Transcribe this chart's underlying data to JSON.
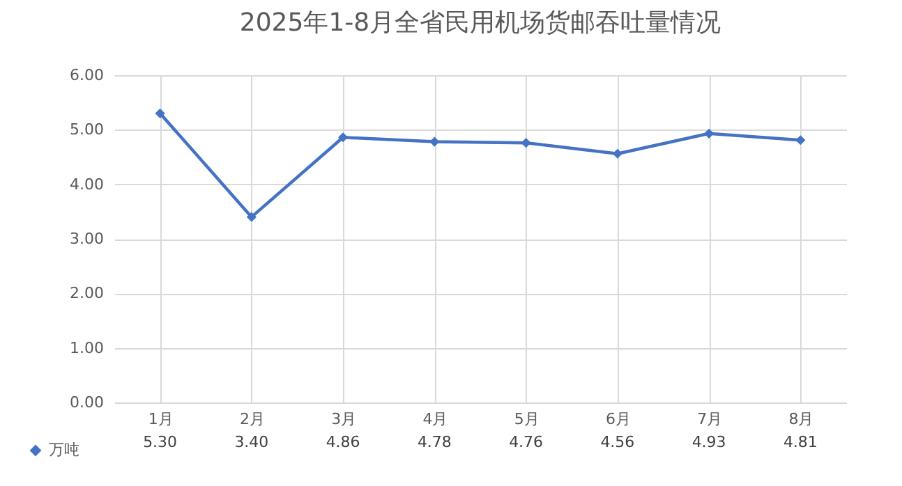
{
  "chart_data": {
    "type": "line",
    "title": "2025年1-8月全省民用机场货邮吞吐量情况",
    "categories": [
      "1月",
      "2月",
      "3月",
      "4月",
      "5月",
      "6月",
      "7月",
      "8月"
    ],
    "series": [
      {
        "name": "万吨",
        "color": "#4472c4",
        "values": [
          5.3,
          3.4,
          4.86,
          4.78,
          4.76,
          4.56,
          4.93,
          4.81
        ],
        "value_labels": [
          "5.30",
          "3.40",
          "4.86",
          "4.78",
          "4.76",
          "4.56",
          "4.93",
          "4.81"
        ]
      }
    ],
    "ylim": [
      0,
      6
    ],
    "yticks": [
      {
        "value": 0,
        "label": "0.00"
      },
      {
        "value": 1,
        "label": "1.00"
      },
      {
        "value": 2,
        "label": "2.00"
      },
      {
        "value": 3,
        "label": "3.00"
      },
      {
        "value": 4,
        "label": "4.00"
      },
      {
        "value": 5,
        "label": "5.00"
      },
      {
        "value": 6,
        "label": "6.00"
      }
    ],
    "grid": true,
    "legend": "bottom left",
    "marker": "diamond",
    "line_style": "solid"
  }
}
